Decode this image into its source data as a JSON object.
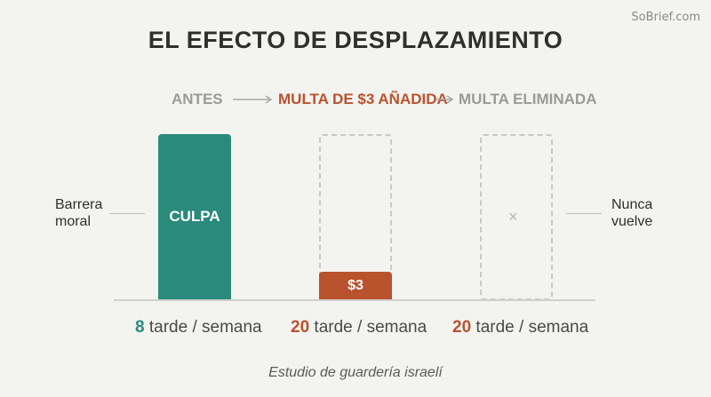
{
  "watermark": "SoBrief.com",
  "title": "EL EFECTO DE DESPLAZAMIENTO",
  "stages": {
    "before": "ANTES",
    "fine_added": "MULTA DE $3 AÑADIDA",
    "fine_removed": "MULTA ELIMINADA"
  },
  "bars": {
    "before_label": "CULPA",
    "fine_label": "$3",
    "removed_mark": "×"
  },
  "side_labels": {
    "left_line1": "Barrera",
    "left_line2": "moral",
    "right_line1": "Nunca",
    "right_line2": "vuelve"
  },
  "counts": [
    {
      "number": "8",
      "rest": "tarde / semana"
    },
    {
      "number": "20",
      "rest": "tarde / semana"
    },
    {
      "number": "20",
      "rest": "tarde / semana"
    }
  ],
  "source": "Estudio de guardería israelí",
  "colors": {
    "teal": "#2a8a7c",
    "rust": "#b8532e",
    "muted": "#9a9a96"
  }
}
